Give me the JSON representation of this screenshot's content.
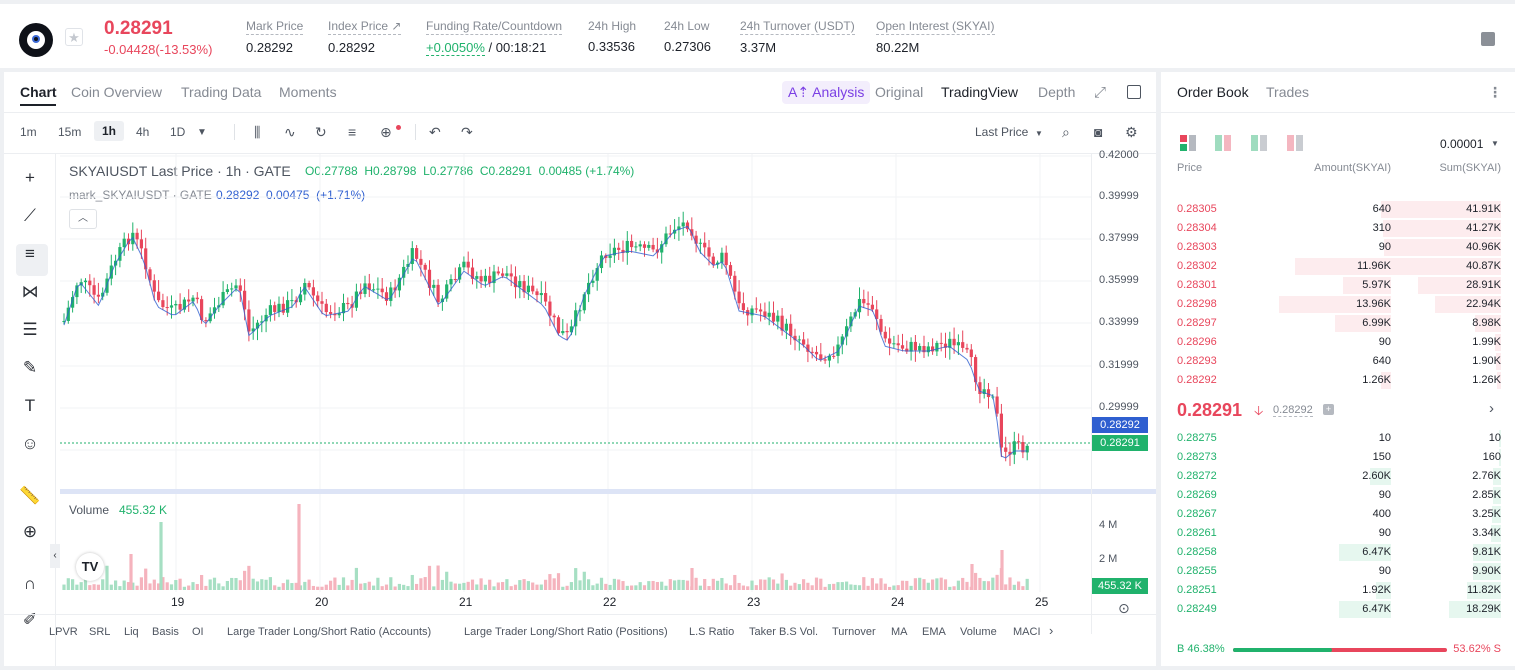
{
  "ticker": {
    "last_price": "0.28291",
    "change": "-0.04428(-13.53%)",
    "stats": [
      {
        "label": "Mark Price",
        "value": "0.28292"
      },
      {
        "label": "Index Price ↗",
        "value": "0.28292"
      },
      {
        "label": "Funding Rate/Countdown",
        "value_green": "+0.0050%",
        "value": " / 00:18:21"
      },
      {
        "label": "24h High",
        "value": "0.33536"
      },
      {
        "label": "24h Low",
        "value": "0.27306"
      },
      {
        "label": "24h Turnover (USDT)",
        "value": "3.37M"
      },
      {
        "label": "Open Interest (SKYAI)",
        "value": "80.22M"
      }
    ]
  },
  "chart_tabs": [
    "Chart",
    "Coin Overview",
    "Trading Data",
    "Moments"
  ],
  "view_tabs": {
    "analysis": "A⇡ Analysis",
    "original": "Original",
    "tradingview": "TradingView",
    "depth": "Depth"
  },
  "timeframes": [
    "1m",
    "15m",
    "1h",
    "4h",
    "1D"
  ],
  "price_type": "Last Price",
  "legend": {
    "title": "SKYAIUSDT Last Price · 1h · GATE",
    "o": "O0.27788",
    "h": "H0.28798",
    "l": "L0.27786",
    "c": "C0.28291",
    "chg": "0.00485 (+1.74%)",
    "mark_label": "mark_SKYAIUSDT · GATE",
    "mark_values": "0.28292  0.00475  (+1.71%)",
    "volume_label": "Volume",
    "volume_value": "455.32 K"
  },
  "price_ticks": [
    "0.42000",
    "0.39999",
    "0.37999",
    "0.35999",
    "0.33999",
    "0.31999",
    "0.29999"
  ],
  "price_tags": {
    "mark": "0.28292",
    "last": "0.28291",
    "volume": "455.32 K"
  },
  "volume_ticks": [
    "4 M",
    "2 M"
  ],
  "x_ticks": [
    "19",
    "20",
    "21",
    "22",
    "23",
    "24",
    "25"
  ],
  "bottom_links": [
    "LPVR",
    "SRL",
    "Liq",
    "Basis",
    "OI",
    "Large Trader Long/Short Ratio (Accounts)",
    "Large Trader Long/Short Ratio (Positions)",
    "L.S Ratio",
    "Taker B.S Vol.",
    "Turnover",
    "MA",
    "EMA",
    "Volume",
    "MACI"
  ],
  "orderbook": {
    "tabs": [
      "Order Book",
      "Trades"
    ],
    "precision": "0.00001",
    "headers": [
      "Price",
      "Amount(SKYAI)",
      "Sum(SKYAI)"
    ],
    "asks": [
      {
        "p": "0.28305",
        "a": "640",
        "s": "41.91K"
      },
      {
        "p": "0.28304",
        "a": "310",
        "s": "41.27K"
      },
      {
        "p": "0.28303",
        "a": "90",
        "s": "40.96K"
      },
      {
        "p": "0.28302",
        "a": "11.96K",
        "s": "40.87K"
      },
      {
        "p": "0.28301",
        "a": "5.97K",
        "s": "28.91K"
      },
      {
        "p": "0.28298",
        "a": "13.96K",
        "s": "22.94K"
      },
      {
        "p": "0.28297",
        "a": "6.99K",
        "s": "8.98K"
      },
      {
        "p": "0.28296",
        "a": "90",
        "s": "1.99K"
      },
      {
        "p": "0.28293",
        "a": "640",
        "s": "1.90K"
      },
      {
        "p": "0.28292",
        "a": "1.26K",
        "s": "1.26K"
      }
    ],
    "mid_price": "0.28291",
    "mid_mark": "0.28292",
    "bids": [
      {
        "p": "0.28275",
        "a": "10",
        "s": "10"
      },
      {
        "p": "0.28273",
        "a": "150",
        "s": "160"
      },
      {
        "p": "0.28272",
        "a": "2.60K",
        "s": "2.76K"
      },
      {
        "p": "0.28269",
        "a": "90",
        "s": "2.85K"
      },
      {
        "p": "0.28267",
        "a": "400",
        "s": "3.25K"
      },
      {
        "p": "0.28261",
        "a": "90",
        "s": "3.34K"
      },
      {
        "p": "0.28258",
        "a": "6.47K",
        "s": "9.81K"
      },
      {
        "p": "0.28255",
        "a": "90",
        "s": "9.90K"
      },
      {
        "p": "0.28251",
        "a": "1.92K",
        "s": "11.82K"
      },
      {
        "p": "0.28249",
        "a": "6.47K",
        "s": "18.29K"
      }
    ],
    "buy_pct": "B 46.38%",
    "sell_pct": "53.62% S",
    "buy_ratio": 46.38
  },
  "colors": {
    "up": "#20b26c",
    "down": "#e8465c",
    "accent": "#7b3fe4"
  }
}
